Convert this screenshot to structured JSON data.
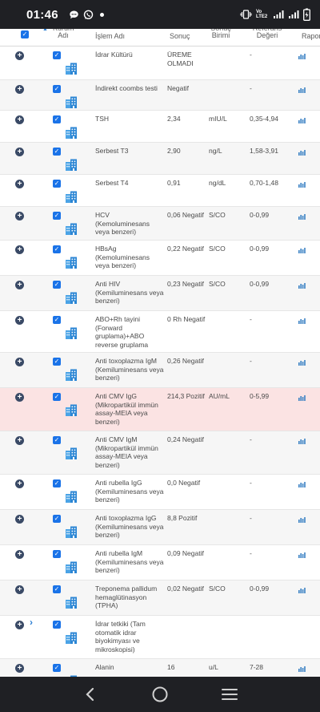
{
  "status_bar": {
    "time": "01:46",
    "network_label": "Vo LTE2",
    "icons": [
      "chat-bubble-icon",
      "whatsapp-icon",
      "vibrate-icon",
      "signal-icon",
      "battery-charging-icon"
    ]
  },
  "table": {
    "headers": {
      "kurum_adi": "Kurum Adı",
      "islem_adi": "İşlem Adı",
      "sonuc": "Sonuç",
      "sonuc_birimi": "Sonuç Birimi",
      "referans_degeri": "Referans Değeri",
      "rapor": "Rapor"
    },
    "rows": [
      {
        "name": "İdrar Kültürü",
        "result": "ÜREME OLMADI",
        "unit": "",
        "ref": "-"
      },
      {
        "name": "İndirekt coombs testi",
        "result": "Negatif",
        "unit": "",
        "ref": "-"
      },
      {
        "name": "TSH",
        "result": "2,34",
        "unit": "mIU/L",
        "ref": "0,35-4,94"
      },
      {
        "name": "Serbest T3",
        "result": "2,90",
        "unit": "ng/L",
        "ref": "1,58-3,91"
      },
      {
        "name": "Serbest T4",
        "result": "0,91",
        "unit": "ng/dL",
        "ref": "0,70-1,48"
      },
      {
        "name": "HCV (Kemoluminesans veya benzeri)",
        "result": "0,06 Negatif",
        "unit": "S/CO",
        "ref": "0-0,99"
      },
      {
        "name": "HBsAg (Kemoluminesans veya benzeri)",
        "result": "0,22 Negatif",
        "unit": "S/CO",
        "ref": "0-0,99"
      },
      {
        "name": "Anti HIV (Kemiluminesans veya benzeri)",
        "result": "0,23 Negatif",
        "unit": "S/CO",
        "ref": "0-0,99"
      },
      {
        "name": "ABO+Rh tayini (Forward gruplama)+ABO reverse gruplama",
        "result": "0 Rh Negatif",
        "unit": "",
        "ref": "-"
      },
      {
        "name": "Anti toxoplazma IgM (Kemiluminesans veya benzeri)",
        "result": "0,26 Negatif",
        "unit": "",
        "ref": "-"
      },
      {
        "name": "Anti CMV IgG (Mikropartikül immün assay-MEIA veya benzeri)",
        "result": "214,3 Pozitif",
        "unit": "AU/mL",
        "ref": "0-5,99"
      },
      {
        "name": "Anti CMV IgM (Mikropartikül immün assay-MEIA veya benzeri)",
        "result": "0,24 Negatif",
        "unit": "",
        "ref": "-"
      },
      {
        "name": "Anti rubella IgG (Kemiluminesans veya benzeri)",
        "result": "0,0 Negatif",
        "unit": "",
        "ref": "-"
      },
      {
        "name": "Anti toxoplazma IgG (Kemiluminesans veya benzeri)",
        "result": "8,8 Pozitif",
        "unit": "",
        "ref": "-"
      },
      {
        "name": "Anti rubella IgM (Kemiluminesans veya benzeri)",
        "result": "0,09 Negatif",
        "unit": "",
        "ref": "-"
      },
      {
        "name": "Treponema pallidum hemaglütinasyon (TPHA)",
        "result": "0,02 Negatif",
        "unit": "S/CO",
        "ref": "0-0,99"
      },
      {
        "name": "İdrar tetkiki (Tam otomatik idrar biyokimyası ve mikroskopisi)",
        "result": "",
        "unit": "",
        "ref": ""
      },
      {
        "name": "Alanin",
        "result": "16",
        "unit": "u/L",
        "ref": "7-28"
      }
    ]
  },
  "colors": {
    "accent": "#1a73e8",
    "highlight_row": "#fbe3e3",
    "expand_button": "#3a4a66"
  }
}
